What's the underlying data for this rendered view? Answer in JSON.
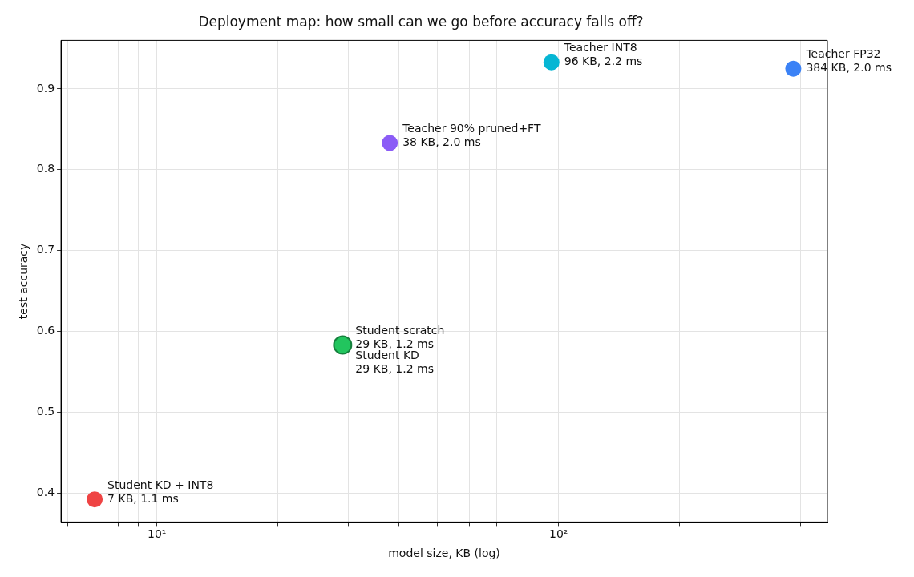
{
  "chart_data": {
    "type": "scatter",
    "title": "Deployment map: how small can we go before accuracy falls off?",
    "xlabel": "model size, KB (log)",
    "ylabel": "test accuracy",
    "x": [
      7,
      29,
      29,
      38,
      96,
      384
    ],
    "values": [
      0.392,
      0.583,
      0.583,
      0.833,
      0.933,
      0.925
    ],
    "colors": [
      "#ef4444",
      "#15803d",
      "#22c55e",
      "#8b5cf6",
      "#06b6d4",
      "#3b82f6"
    ],
    "annotations": [
      {
        "text": "Student KD + INT8\n7 KB, 1.1 ms",
        "x": 7,
        "y": 0.392
      },
      {
        "text": "Student scratch\n29 KB, 1.2 ms",
        "x": 29,
        "y": 0.583
      },
      {
        "text": "Student KD\n29 KB, 1.2 ms",
        "x": 29,
        "y": 0.583
      },
      {
        "text": "Teacher 90% pruned+FT\n38 KB, 2.0 ms",
        "x": 38,
        "y": 0.833
      },
      {
        "text": "Teacher INT8\n96 KB, 2.2 ms",
        "x": 96,
        "y": 0.933
      },
      {
        "text": "Teacher FP32\n384 KB, 2.0 ms",
        "x": 384,
        "y": 0.925
      }
    ],
    "log": "x",
    "xlim": [
      5.77,
      467
    ],
    "ylim": [
      0.364,
      0.96
    ],
    "xticks": [
      {
        "value": 6,
        "label": null
      },
      {
        "value": 7,
        "label": null
      },
      {
        "value": 8,
        "label": null
      },
      {
        "value": 9,
        "label": null
      },
      {
        "value": 10,
        "label": "10¹"
      },
      {
        "value": 20,
        "label": null
      },
      {
        "value": 30,
        "label": null
      },
      {
        "value": 40,
        "label": null
      },
      {
        "value": 50,
        "label": null
      },
      {
        "value": 60,
        "label": null
      },
      {
        "value": 70,
        "label": null
      },
      {
        "value": 80,
        "label": null
      },
      {
        "value": 90,
        "label": null
      },
      {
        "value": 100,
        "label": "10²"
      },
      {
        "value": 200,
        "label": null
      },
      {
        "value": 300,
        "label": null
      },
      {
        "value": 400,
        "label": null
      }
    ],
    "yticks": [
      0.4,
      0.5,
      0.6,
      0.7,
      0.8,
      0.9
    ],
    "grid": true,
    "legend": false,
    "marker": "circle"
  }
}
